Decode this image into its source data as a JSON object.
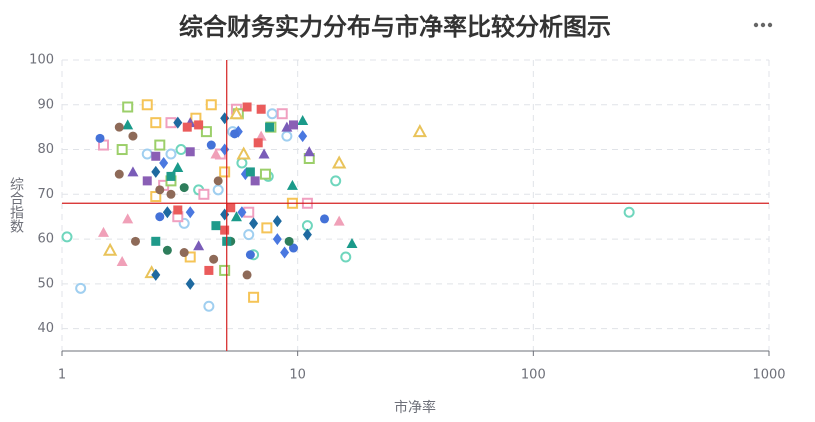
{
  "chart_data": {
    "type": "scatter",
    "title": "综合财务实力分布与市净率比较分析图示",
    "x_label": "市净率",
    "y_label": "综合指数",
    "x_scale": "log",
    "xlim": [
      1,
      1000
    ],
    "xticks": [
      1,
      10,
      100,
      1000
    ],
    "ylim": [
      35,
      100
    ],
    "yticks": [
      40,
      50,
      60,
      70,
      80,
      90,
      100
    ],
    "grid": true,
    "ref_x": 5,
    "ref_y": 68,
    "ref_color": "#d42020",
    "series": [
      {
        "color": "#6fd6bd",
        "symbol": "circle",
        "hollow": true,
        "x": [
          1.05,
          16,
          255,
          14.5,
          6.5,
          5.8,
          3.8,
          11,
          7.5,
          3.2
        ],
        "values": [
          60.5,
          56,
          66,
          73,
          56.5,
          77,
          71,
          63,
          74,
          80
        ]
      },
      {
        "color": "#a0cff0",
        "symbol": "circle",
        "hollow": true,
        "x": [
          1.2,
          4.2,
          3.3,
          7.8,
          9,
          2.9,
          5.3,
          6.2,
          4.6,
          2.3
        ],
        "values": [
          49,
          45,
          63.5,
          88,
          83,
          79,
          84,
          61,
          71,
          79
        ]
      },
      {
        "color": "#f0a0c0",
        "symbol": "square",
        "hollow": true,
        "x": [
          1.5,
          8.6,
          3.1,
          2.7,
          4,
          11,
          5.5,
          2.9,
          4.7,
          6.2
        ],
        "values": [
          81,
          88,
          65,
          72,
          70,
          68,
          89,
          86,
          79,
          66
        ]
      },
      {
        "color": "#9ccf6a",
        "symbol": "square",
        "hollow": true,
        "x": [
          1.9,
          1.8,
          11.2,
          7.3,
          2.6,
          4.9,
          2.9,
          7.7,
          4.1,
          5.6
        ],
        "values": [
          89.5,
          80,
          78,
          74.5,
          81,
          53,
          73,
          85,
          84,
          88
        ]
      },
      {
        "color": "#f5c457",
        "symbol": "square",
        "hollow": true,
        "x": [
          2.3,
          4.3,
          9.5,
          6.5,
          2.5,
          4.9,
          3.7,
          3.5,
          7.4,
          2.5
        ],
        "values": [
          90,
          90,
          68,
          47,
          86,
          75,
          87,
          56,
          62.5,
          69.5
        ]
      },
      {
        "color": "#e9c35a",
        "symbol": "triangle",
        "hollow": true,
        "x": [
          33,
          15,
          2.4,
          5.5,
          5.9,
          1.6
        ],
        "values": [
          84,
          77,
          52.5,
          88,
          79,
          57.5
        ]
      },
      {
        "color": "#f0a0b8",
        "symbol": "triangle",
        "hollow": false,
        "x": [
          1.5,
          1.9,
          15,
          7,
          4.5,
          1.8
        ],
        "values": [
          61.5,
          64.5,
          64,
          83,
          79,
          55
        ]
      },
      {
        "color": "#1a9a8a",
        "symbol": "triangle",
        "hollow": false,
        "x": [
          9.5,
          10.5,
          17,
          3.1,
          1.9,
          5.5
        ],
        "values": [
          72,
          86.5,
          59,
          76,
          85.5,
          65
        ]
      },
      {
        "color": "#7a5cb8",
        "symbol": "triangle",
        "hollow": false,
        "x": [
          11.2,
          7.2,
          2,
          3.8,
          9,
          3.5
        ],
        "values": [
          79.5,
          79,
          75,
          58.5,
          85,
          86
        ]
      },
      {
        "color": "#1f6aa0",
        "symbol": "diamond",
        "hollow": false,
        "x": [
          3.5,
          2.5,
          8.2,
          11,
          4.9,
          6.5,
          2.5,
          3.1,
          4.9,
          2.8
        ],
        "values": [
          50,
          52,
          64,
          61,
          65.5,
          63.5,
          75,
          86,
          87,
          66
        ]
      },
      {
        "color": "#4a78e0",
        "symbol": "diamond",
        "hollow": false,
        "x": [
          5.6,
          4.9,
          10.5,
          8.8,
          6,
          2.7,
          3.5,
          5.8,
          8.2
        ],
        "values": [
          84,
          80,
          83,
          57,
          74.5,
          77,
          66,
          66,
          60
        ]
      },
      {
        "color": "#4472d8",
        "symbol": "circle",
        "hollow": false,
        "x": [
          1.45,
          5.4,
          13,
          2.6,
          4.3,
          6.3,
          9.6
        ],
        "values": [
          82.5,
          83.5,
          64.5,
          65,
          81,
          56.5,
          58
        ]
      },
      {
        "color": "#8e6a58",
        "symbol": "circle",
        "hollow": false,
        "x": [
          1.75,
          1.75,
          2.05,
          4.4,
          6.1,
          4.6,
          2.6,
          3.3,
          2.9,
          2
        ],
        "values": [
          85,
          74.5,
          59.5,
          55.5,
          52,
          73,
          71,
          57,
          70,
          83
        ]
      },
      {
        "color": "#2e7d5b",
        "symbol": "circle",
        "hollow": false,
        "x": [
          2.8,
          9.2,
          3.3,
          5.2
        ],
        "values": [
          57.5,
          59.5,
          71.5,
          59.5
        ]
      },
      {
        "color": "#ea5b5b",
        "symbol": "square",
        "hollow": false,
        "x": [
          6.1,
          6.8,
          3.8,
          4.2,
          4.9,
          5.2,
          7,
          3.1,
          3.4
        ],
        "values": [
          89.5,
          81.5,
          85.5,
          53,
          62,
          67,
          89,
          66.5,
          85
        ]
      },
      {
        "color": "#1f9a8a",
        "symbol": "square",
        "hollow": false,
        "x": [
          7.6,
          2.5,
          6.3,
          2.9,
          5,
          4.5
        ],
        "values": [
          85,
          59.5,
          75,
          74,
          59.5,
          63
        ]
      },
      {
        "color": "#8a5fb5",
        "symbol": "square",
        "hollow": false,
        "x": [
          2.3,
          3.5,
          6.6,
          9.6,
          2.5
        ],
        "values": [
          73,
          79.5,
          73,
          85.5,
          78.5
        ]
      }
    ]
  }
}
